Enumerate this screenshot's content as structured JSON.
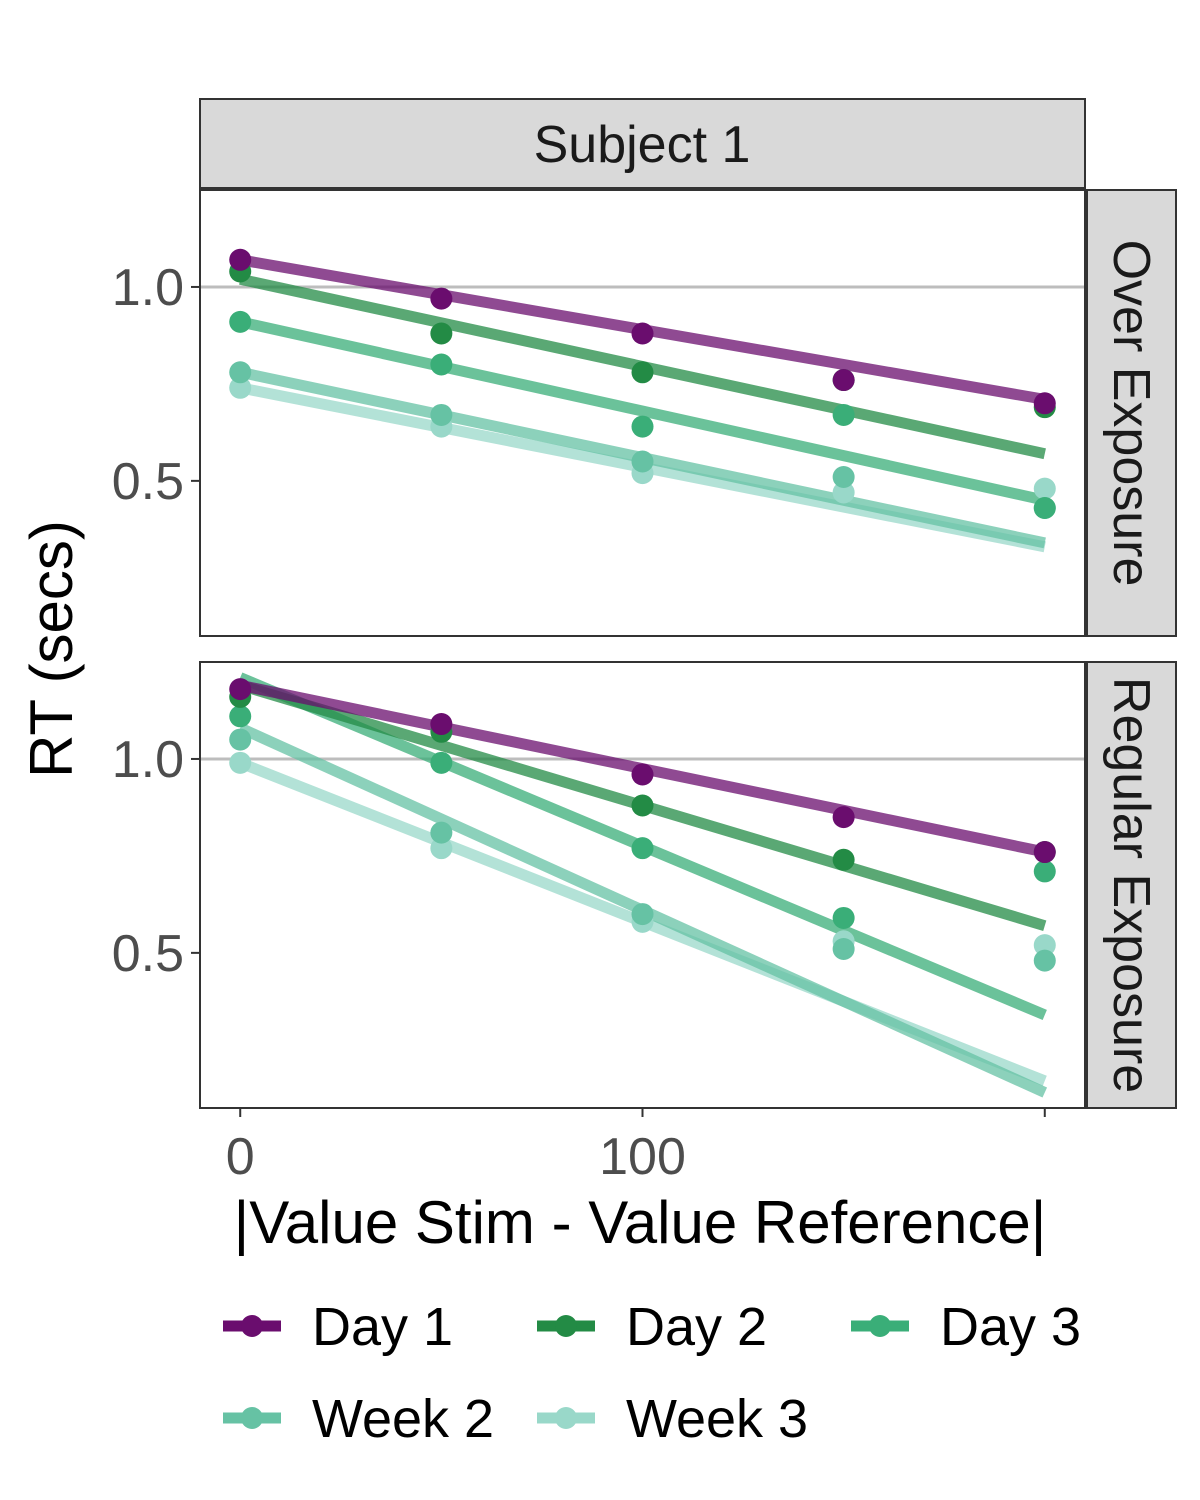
{
  "chart_data": {
    "type": "scatter",
    "facet_title": "Subject 1",
    "xlabel": "|Value Stim - Value Reference|",
    "ylabel": "RT (secs)",
    "xlim": [
      -10,
      210
    ],
    "ylim": [
      0.1,
      1.25
    ],
    "x_ticks": [
      0,
      100,
      200
    ],
    "x_tick_labels": [
      "0",
      "100",
      ""
    ],
    "y_ticks": [
      0.5,
      1.0
    ],
    "y_tick_labels": [
      "0.5",
      "1.0"
    ],
    "reference_line_y": 1.0,
    "legend_position": "bottom",
    "colors": {
      "Day 1": "#6a0d6e",
      "Day 2": "#238b45",
      "Day 3": "#3aae78",
      "Week 2": "#66c2a4",
      "Week 3": "#99d8c9"
    },
    "legend": [
      {
        "label": "Day 1",
        "color": "#6a0d6e"
      },
      {
        "label": "Day 2",
        "color": "#238b45"
      },
      {
        "label": "Day 3",
        "color": "#3aae78"
      },
      {
        "label": "Week 2",
        "color": "#66c2a4"
      },
      {
        "label": "Week 3",
        "color": "#99d8c9"
      }
    ],
    "panels": [
      {
        "label": "Over Exposure",
        "series": [
          {
            "name": "Day 1",
            "x": [
              0,
              50,
              100,
              150,
              200
            ],
            "y": [
              1.07,
              0.97,
              0.88,
              0.76,
              0.7
            ],
            "fit": [
              [
                0,
                1.07
              ],
              [
                200,
                0.71
              ]
            ]
          },
          {
            "name": "Day 2",
            "x": [
              0,
              50,
              100,
              150,
              200
            ],
            "y": [
              1.04,
              0.88,
              0.78,
              0.76,
              0.69
            ],
            "fit": [
              [
                0,
                1.02
              ],
              [
                200,
                0.57
              ]
            ]
          },
          {
            "name": "Day 3",
            "x": [
              0,
              50,
              100,
              150,
              200
            ],
            "y": [
              0.91,
              0.8,
              0.64,
              0.67,
              0.43
            ],
            "fit": [
              [
                0,
                0.91
              ],
              [
                200,
                0.45
              ]
            ]
          },
          {
            "name": "Week 2",
            "x": [
              0,
              50,
              100,
              150,
              200
            ],
            "y": [
              0.78,
              0.67,
              0.55,
              0.51,
              0.43
            ],
            "fit": [
              [
                0,
                0.78
              ],
              [
                200,
                0.34
              ]
            ]
          },
          {
            "name": "Week 3",
            "x": [
              0,
              50,
              100,
              150,
              200
            ],
            "y": [
              0.74,
              0.64,
              0.52,
              0.47,
              0.48
            ],
            "fit": [
              [
                0,
                0.74
              ],
              [
                200,
                0.33
              ]
            ]
          }
        ]
      },
      {
        "label": "Regular Exposure",
        "series": [
          {
            "name": "Day 1",
            "x": [
              0,
              50,
              100,
              150,
              200
            ],
            "y": [
              1.18,
              1.09,
              0.96,
              0.85,
              0.76
            ],
            "fit": [
              [
                0,
                1.19
              ],
              [
                200,
                0.76
              ]
            ]
          },
          {
            "name": "Day 2",
            "x": [
              0,
              50,
              100,
              150,
              200
            ],
            "y": [
              1.16,
              1.07,
              0.88,
              0.74,
              0.76
            ],
            "fit": [
              [
                0,
                1.19
              ],
              [
                200,
                0.57
              ]
            ]
          },
          {
            "name": "Day 3",
            "x": [
              0,
              50,
              100,
              150,
              200
            ],
            "y": [
              1.11,
              0.99,
              0.77,
              0.59,
              0.71
            ],
            "fit": [
              [
                0,
                1.21
              ],
              [
                200,
                0.34
              ]
            ]
          },
          {
            "name": "Week 2",
            "x": [
              0,
              50,
              100,
              150,
              200
            ],
            "y": [
              1.05,
              0.81,
              0.6,
              0.51,
              0.48
            ],
            "fit": [
              [
                0,
                1.08
              ],
              [
                200,
                0.14
              ]
            ]
          },
          {
            "name": "Week 3",
            "x": [
              0,
              50,
              100,
              150,
              200
            ],
            "y": [
              0.99,
              0.77,
              0.58,
              0.53,
              0.52
            ],
            "fit": [
              [
                0,
                0.99
              ],
              [
                200,
                0.17
              ]
            ]
          }
        ]
      }
    ]
  }
}
